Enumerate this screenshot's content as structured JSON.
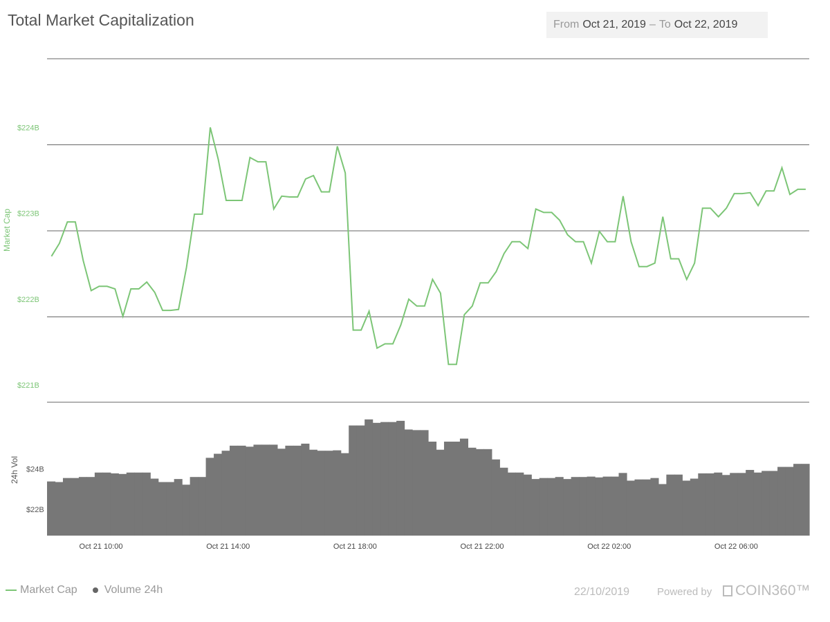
{
  "title": "Total Market Capitalization",
  "range": {
    "from_label": "From",
    "from_date": "Oct 21, 2019",
    "sep": "–",
    "to_label": "To",
    "to_date": "Oct 22, 2019"
  },
  "legend": {
    "market_cap": "Market Cap",
    "volume": "Volume 24h"
  },
  "footer": {
    "date": "22/10/2019",
    "powered": "Powered by",
    "brand": "COIN360™"
  },
  "colors": {
    "line": "#7cc576",
    "volume": "#777777",
    "grid": "#666666"
  },
  "chart_data": [
    {
      "type": "line",
      "title": "Total Market Capitalization",
      "ylabel": "Market Cap",
      "y_ticks": [
        "$221B",
        "$222B",
        "$223B",
        "$224B"
      ],
      "ylim": [
        220.8,
        224.8
      ],
      "x_ticks": [
        "Oct 21 10:00",
        "Oct 21 14:00",
        "Oct 21 18:00",
        "Oct 21 22:00",
        "Oct 22 02:00",
        "Oct 22 06:00"
      ],
      "x_tick_hours": [
        10,
        14,
        18,
        22,
        26,
        30
      ],
      "x_range_hours": [
        8.3,
        32.3
      ],
      "series": [
        {
          "name": "Market Cap",
          "unit": "$B",
          "x_hours": [
            8.44,
            8.69,
            8.94,
            9.19,
            9.44,
            9.69,
            9.94,
            10.19,
            10.44,
            10.69,
            10.94,
            11.19,
            11.44,
            11.69,
            11.94,
            12.19,
            12.44,
            12.69,
            12.94,
            13.19,
            13.44,
            13.69,
            13.94,
            14.19,
            14.44,
            14.69,
            14.94,
            15.19,
            15.44,
            15.69,
            15.94,
            16.19,
            16.44,
            16.69,
            16.94,
            17.19,
            17.44,
            17.69,
            17.94,
            18.19,
            18.44,
            18.69,
            18.94,
            19.19,
            19.44,
            19.69,
            19.94,
            20.19,
            20.44,
            20.69,
            20.94,
            21.19,
            21.44,
            21.69,
            21.94,
            22.19,
            22.44,
            22.69,
            22.94,
            23.19,
            23.44,
            23.69,
            23.94,
            24.19,
            24.44,
            24.69,
            24.94,
            25.19,
            25.44,
            25.69,
            25.94,
            26.19,
            26.44,
            26.69,
            26.94,
            27.19,
            27.44,
            27.69,
            27.94,
            28.19,
            28.44,
            28.69,
            28.94,
            29.19,
            29.44,
            29.69,
            29.94,
            30.19,
            30.44,
            30.69,
            30.94,
            31.19,
            31.44,
            31.69,
            31.94,
            32.19
          ],
          "values": [
            222.5,
            222.65,
            222.9,
            222.9,
            222.45,
            222.1,
            222.15,
            222.15,
            222.12,
            221.8,
            222.12,
            222.12,
            222.2,
            222.08,
            221.87,
            221.87,
            221.88,
            222.37,
            222.99,
            222.99,
            224.0,
            223.63,
            223.15,
            223.15,
            223.15,
            223.65,
            223.6,
            223.6,
            223.05,
            223.2,
            223.19,
            223.19,
            223.4,
            223.44,
            223.25,
            223.25,
            223.78,
            223.47,
            221.64,
            221.64,
            221.86,
            221.43,
            221.48,
            221.48,
            221.7,
            222.0,
            221.92,
            221.92,
            222.23,
            222.07,
            221.24,
            221.24,
            221.82,
            221.92,
            222.19,
            222.19,
            222.32,
            222.53,
            222.67,
            222.67,
            222.59,
            223.05,
            223.01,
            223.01,
            222.92,
            222.75,
            222.67,
            222.67,
            222.42,
            222.79,
            222.67,
            222.67,
            223.2,
            222.67,
            222.38,
            222.38,
            222.42,
            222.96,
            222.47,
            222.47,
            222.23,
            222.42,
            223.06,
            223.06,
            222.96,
            223.06,
            223.23,
            223.23,
            223.24,
            223.09,
            223.26,
            223.26,
            223.53,
            223.22,
            223.28,
            223.28
          ]
        }
      ]
    },
    {
      "type": "bar",
      "title": "",
      "ylabel": "24h Vol",
      "y_ticks": [
        "$22B",
        "$24B"
      ],
      "ylim": [
        20.7,
        27.3
      ],
      "x_ticks": [
        "Oct 21 10:00",
        "Oct 21 14:00",
        "Oct 21 18:00",
        "Oct 21 22:00",
        "Oct 22 02:00",
        "Oct 22 06:00"
      ],
      "series": [
        {
          "name": "Volume 24h",
          "unit": "$B",
          "x_hours": [
            8.3,
            8.55,
            8.8,
            9.05,
            9.3,
            9.55,
            9.8,
            10.05,
            10.3,
            10.55,
            10.8,
            11.05,
            11.3,
            11.55,
            11.8,
            12.05,
            12.3,
            12.55,
            12.8,
            13.05,
            13.3,
            13.55,
            13.8,
            14.05,
            14.3,
            14.55,
            14.8,
            15.05,
            15.3,
            15.55,
            15.8,
            16.05,
            16.3,
            16.55,
            16.8,
            17.05,
            17.3,
            17.55,
            17.8,
            18.05,
            18.3,
            18.55,
            18.8,
            19.05,
            19.3,
            19.55,
            19.8,
            20.05,
            20.3,
            20.55,
            20.8,
            21.05,
            21.3,
            21.55,
            21.8,
            22.05,
            22.3,
            22.55,
            22.8,
            23.05,
            23.3,
            23.55,
            23.8,
            24.05,
            24.3,
            24.55,
            24.8,
            25.05,
            25.3,
            25.55,
            25.8,
            26.05,
            26.3,
            26.55,
            26.8,
            27.05,
            27.3,
            27.55,
            27.8,
            28.05,
            28.3,
            28.55,
            28.8,
            29.05,
            29.3,
            29.55,
            29.8,
            30.05,
            30.3,
            30.55,
            30.8,
            31.05,
            31.3,
            31.55,
            31.8,
            32.05
          ],
          "values": [
            23.38,
            23.35,
            23.55,
            23.55,
            23.6,
            23.6,
            23.82,
            23.82,
            23.78,
            23.75,
            23.82,
            23.82,
            23.82,
            23.52,
            23.35,
            23.35,
            23.5,
            23.22,
            23.6,
            23.6,
            24.55,
            24.75,
            24.9,
            25.15,
            25.15,
            25.1,
            25.2,
            25.2,
            25.2,
            25.0,
            25.15,
            25.15,
            25.25,
            24.95,
            24.9,
            24.9,
            24.92,
            24.78,
            26.15,
            26.15,
            26.45,
            26.28,
            26.32,
            26.32,
            26.38,
            25.95,
            25.92,
            25.92,
            25.35,
            24.95,
            25.35,
            25.35,
            25.5,
            25.05,
            24.98,
            24.98,
            24.47,
            24.06,
            23.82,
            23.82,
            23.72,
            23.5,
            23.55,
            23.55,
            23.6,
            23.5,
            23.6,
            23.6,
            23.62,
            23.58,
            23.62,
            23.62,
            23.8,
            23.42,
            23.48,
            23.48,
            23.55,
            23.25,
            23.72,
            23.72,
            23.42,
            23.52,
            23.78,
            23.78,
            23.82,
            23.7,
            23.8,
            23.8,
            23.95,
            23.82,
            23.9,
            23.9,
            24.1,
            24.1,
            24.25,
            24.25
          ]
        }
      ]
    }
  ]
}
